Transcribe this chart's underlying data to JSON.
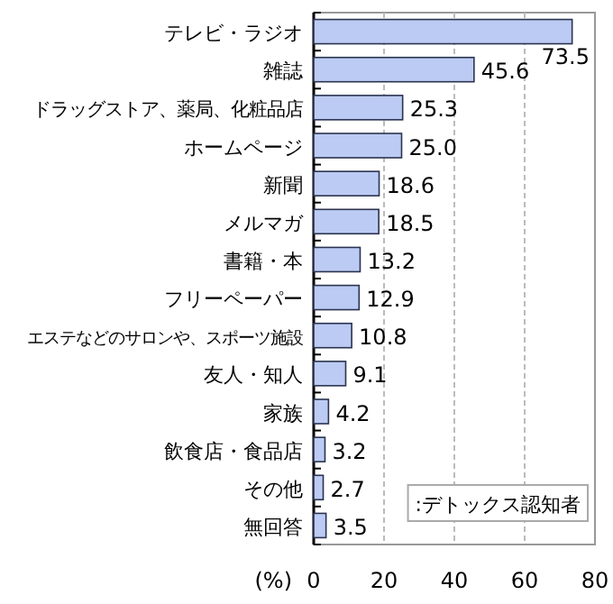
{
  "chart_data": {
    "type": "bar",
    "orientation": "horizontal",
    "categories": [
      "テレビ・ラジオ",
      "雑誌",
      "ドラッグストア、薬局、化粧品店",
      "ホームページ",
      "新聞",
      "メルマガ",
      "書籍・本",
      "フリーペーパー",
      "エステなどのサロンや、スポーツ施設",
      "友人・知人",
      "家族",
      "飲食店・食品店",
      "その他",
      "無回答"
    ],
    "values": [
      73.5,
      45.6,
      25.3,
      25.0,
      18.6,
      18.5,
      13.2,
      12.9,
      10.8,
      9.1,
      4.2,
      3.2,
      2.7,
      3.5
    ],
    "value_labels": [
      "73.5",
      "45.6",
      "25.3",
      "25.0",
      "18.6",
      "18.5",
      "13.2",
      "12.9",
      "10.8",
      "9.1",
      "4.2",
      "3.2",
      "2.7",
      "3.5"
    ],
    "color": "#bccbf3",
    "xlim": [
      0,
      80
    ],
    "xticks": [
      0,
      20,
      40,
      60,
      80
    ],
    "xlabel": "(%)",
    "grid": "x",
    "annotations": [
      ":デトックス認知者"
    ]
  }
}
